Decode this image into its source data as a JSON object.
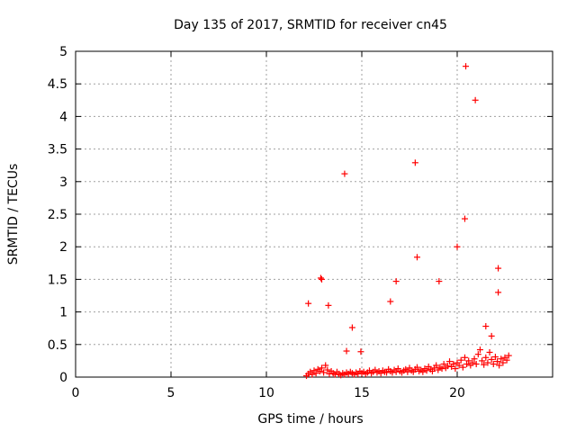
{
  "chart_data": {
    "type": "scatter",
    "title": "Day 135 of 2017, SRMTID for receiver cn45",
    "xlabel": "GPS time / hours",
    "ylabel": "SRMTID / TECUs",
    "xlim": [
      0,
      25
    ],
    "ylim": [
      0,
      5
    ],
    "xticks": [
      0,
      5,
      10,
      15,
      20
    ],
    "xtick_labels": [
      "0",
      "5",
      "10",
      "15",
      "20"
    ],
    "yticks": [
      0,
      0.5,
      1,
      1.5,
      2,
      2.5,
      3,
      3.5,
      4,
      4.5,
      5
    ],
    "ytick_labels": [
      "0",
      "0.5",
      "1",
      "1.5",
      "2",
      "2.5",
      "3",
      "3.5",
      "4",
      "4.5",
      "5"
    ],
    "grid": true,
    "marker": "+",
    "marker_color": "#ff0000",
    "series": [
      {
        "name": "SRMTID",
        "points": [
          [
            12.2,
            1.13
          ],
          [
            12.85,
            1.52
          ],
          [
            12.9,
            1.5
          ],
          [
            13.25,
            1.1
          ],
          [
            14.1,
            3.12
          ],
          [
            14.2,
            0.4
          ],
          [
            14.5,
            0.76
          ],
          [
            14.95,
            0.39
          ],
          [
            16.5,
            1.16
          ],
          [
            16.8,
            1.47
          ],
          [
            17.8,
            3.29
          ],
          [
            17.9,
            1.84
          ],
          [
            19.05,
            1.47
          ],
          [
            20.0,
            2.0
          ],
          [
            20.4,
            2.43
          ],
          [
            20.45,
            4.77
          ],
          [
            20.95,
            4.25
          ],
          [
            21.5,
            0.78
          ],
          [
            21.8,
            0.63
          ],
          [
            22.15,
            1.67
          ],
          [
            22.15,
            1.3
          ],
          [
            12.1,
            0.02
          ],
          [
            12.2,
            0.05
          ],
          [
            12.3,
            0.08
          ],
          [
            12.4,
            0.04
          ],
          [
            12.5,
            0.1
          ],
          [
            12.6,
            0.06
          ],
          [
            12.7,
            0.12
          ],
          [
            12.8,
            0.09
          ],
          [
            12.9,
            0.14
          ],
          [
            13.0,
            0.07
          ],
          [
            13.1,
            0.18
          ],
          [
            13.2,
            0.11
          ],
          [
            13.3,
            0.05
          ],
          [
            13.4,
            0.09
          ],
          [
            13.5,
            0.06
          ],
          [
            13.6,
            0.04
          ],
          [
            13.7,
            0.08
          ],
          [
            13.8,
            0.05
          ],
          [
            13.9,
            0.03
          ],
          [
            14.0,
            0.06
          ],
          [
            14.1,
            0.04
          ],
          [
            14.2,
            0.07
          ],
          [
            14.3,
            0.05
          ],
          [
            14.4,
            0.08
          ],
          [
            14.5,
            0.06
          ],
          [
            14.6,
            0.04
          ],
          [
            14.7,
            0.07
          ],
          [
            14.8,
            0.05
          ],
          [
            14.9,
            0.09
          ],
          [
            15.0,
            0.06
          ],
          [
            15.1,
            0.08
          ],
          [
            15.2,
            0.05
          ],
          [
            15.3,
            0.07
          ],
          [
            15.4,
            0.1
          ],
          [
            15.5,
            0.06
          ],
          [
            15.6,
            0.08
          ],
          [
            15.7,
            0.11
          ],
          [
            15.8,
            0.07
          ],
          [
            15.9,
            0.09
          ],
          [
            16.0,
            0.06
          ],
          [
            16.1,
            0.1
          ],
          [
            16.2,
            0.08
          ],
          [
            16.3,
            0.07
          ],
          [
            16.4,
            0.12
          ],
          [
            16.5,
            0.09
          ],
          [
            16.6,
            0.07
          ],
          [
            16.7,
            0.11
          ],
          [
            16.8,
            0.08
          ],
          [
            16.9,
            0.13
          ],
          [
            17.0,
            0.09
          ],
          [
            17.1,
            0.07
          ],
          [
            17.2,
            0.1
          ],
          [
            17.3,
            0.12
          ],
          [
            17.4,
            0.08
          ],
          [
            17.5,
            0.14
          ],
          [
            17.6,
            0.1
          ],
          [
            17.7,
            0.08
          ],
          [
            17.8,
            0.12
          ],
          [
            17.9,
            0.15
          ],
          [
            18.0,
            0.09
          ],
          [
            18.1,
            0.11
          ],
          [
            18.2,
            0.08
          ],
          [
            18.3,
            0.13
          ],
          [
            18.4,
            0.1
          ],
          [
            18.5,
            0.16
          ],
          [
            18.6,
            0.12
          ],
          [
            18.7,
            0.09
          ],
          [
            18.8,
            0.14
          ],
          [
            18.9,
            0.18
          ],
          [
            19.0,
            0.11
          ],
          [
            19.1,
            0.15
          ],
          [
            19.2,
            0.13
          ],
          [
            19.3,
            0.2
          ],
          [
            19.4,
            0.14
          ],
          [
            19.5,
            0.17
          ],
          [
            19.6,
            0.24
          ],
          [
            19.7,
            0.16
          ],
          [
            19.8,
            0.2
          ],
          [
            19.9,
            0.13
          ],
          [
            20.0,
            0.22
          ],
          [
            20.1,
            0.18
          ],
          [
            20.2,
            0.26
          ],
          [
            20.3,
            0.15
          ],
          [
            20.4,
            0.3
          ],
          [
            20.5,
            0.2
          ],
          [
            20.6,
            0.25
          ],
          [
            20.7,
            0.18
          ],
          [
            20.8,
            0.22
          ],
          [
            20.9,
            0.28
          ],
          [
            21.0,
            0.2
          ],
          [
            21.1,
            0.35
          ],
          [
            21.2,
            0.42
          ],
          [
            21.3,
            0.25
          ],
          [
            21.4,
            0.19
          ],
          [
            21.5,
            0.3
          ],
          [
            21.6,
            0.22
          ],
          [
            21.7,
            0.38
          ],
          [
            21.8,
            0.27
          ],
          [
            21.9,
            0.2
          ],
          [
            22.0,
            0.31
          ],
          [
            22.1,
            0.24
          ],
          [
            22.2,
            0.18
          ],
          [
            22.3,
            0.28
          ],
          [
            22.4,
            0.22
          ],
          [
            22.5,
            0.3
          ],
          [
            22.6,
            0.26
          ],
          [
            22.7,
            0.33
          ]
        ]
      }
    ]
  }
}
